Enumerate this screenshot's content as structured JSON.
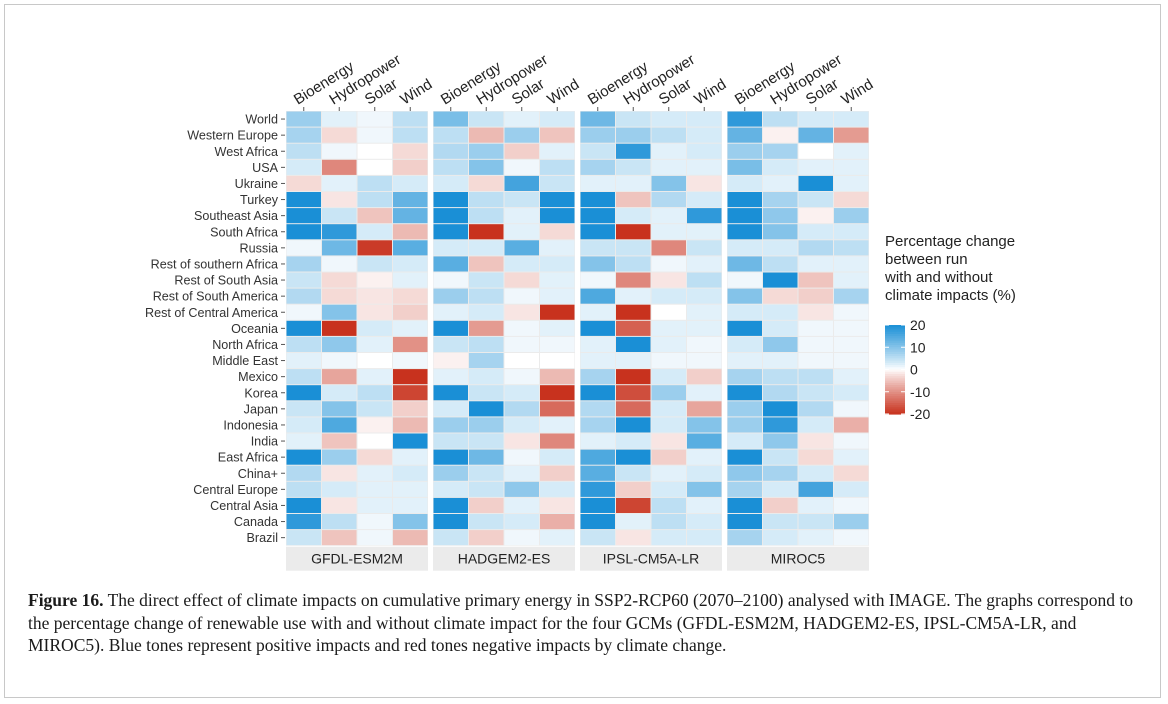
{
  "chart_data": {
    "type": "heatmap",
    "facets": [
      "GFDL-ESM2M",
      "HADGEM2-ES",
      "IPSL-CM5A-LR",
      "MIROC5"
    ],
    "columns": [
      "Bioenergy",
      "Hydropower",
      "Solar",
      "Wind"
    ],
    "rows": [
      "World",
      "Western Europe",
      "West Africa",
      "USA",
      "Ukraine",
      "Turkey",
      "Southeast Asia",
      "South Africa",
      "Russia",
      "Rest of southern Africa",
      "Rest of South Asia",
      "Rest of South America",
      "Rest of Central America",
      "Oceania",
      "North Africa",
      "Middle East",
      "Mexico",
      "Korea",
      "Japan",
      "Indonesia",
      "India",
      "East Africa",
      "China+",
      "Central Europe",
      "Central Asia",
      "Canada",
      "Brazil"
    ],
    "values": {
      "GFDL-ESM2M": [
        [
          8,
          2,
          1,
          5
        ],
        [
          7,
          -3,
          1,
          5
        ],
        [
          5,
          1,
          0,
          -3
        ],
        [
          3,
          -11,
          0,
          -4
        ],
        [
          -3,
          2,
          5,
          3
        ],
        [
          20,
          -2,
          5,
          13
        ],
        [
          20,
          4,
          -5,
          13
        ],
        [
          20,
          18,
          3,
          -6
        ],
        [
          1,
          12,
          -19,
          14
        ],
        [
          7,
          1,
          4,
          3
        ],
        [
          4,
          -3,
          -1,
          2
        ],
        [
          6,
          -3,
          -2,
          -3
        ],
        [
          1,
          10,
          -2,
          -4
        ],
        [
          20,
          -20,
          3,
          2
        ],
        [
          5,
          9,
          2,
          -10
        ],
        [
          2,
          1,
          0,
          1
        ],
        [
          5,
          -8,
          2,
          -21
        ],
        [
          20,
          3,
          5,
          -18
        ],
        [
          4,
          10,
          4,
          -4
        ],
        [
          3,
          15,
          -1,
          -6
        ],
        [
          2,
          -5,
          0,
          20
        ],
        [
          20,
          8,
          -3,
          2
        ],
        [
          6,
          -2,
          2,
          3
        ],
        [
          5,
          3,
          2,
          2
        ],
        [
          20,
          -2,
          2,
          2
        ],
        [
          18,
          5,
          1,
          10
        ],
        [
          4,
          -5,
          1,
          -6
        ]
      ],
      "HADGEM2-ES": [
        [
          11,
          4,
          2,
          3
        ],
        [
          5,
          -6,
          8,
          -5
        ],
        [
          6,
          8,
          -4,
          2
        ],
        [
          5,
          10,
          1,
          5
        ],
        [
          3,
          -3,
          16,
          4
        ],
        [
          20,
          5,
          4,
          20
        ],
        [
          20,
          5,
          2,
          20
        ],
        [
          20,
          -20,
          2,
          -3
        ],
        [
          3,
          3,
          14,
          2
        ],
        [
          14,
          -5,
          3,
          3
        ],
        [
          1,
          4,
          -3,
          2
        ],
        [
          8,
          5,
          1,
          2
        ],
        [
          2,
          3,
          -2,
          -20
        ],
        [
          20,
          -9,
          1,
          2
        ],
        [
          4,
          5,
          1,
          1
        ],
        [
          -1,
          7,
          0,
          0
        ],
        [
          2,
          3,
          1,
          -6
        ],
        [
          20,
          4,
          3,
          -20
        ],
        [
          3,
          20,
          6,
          -14
        ],
        [
          8,
          8,
          3,
          2
        ],
        [
          4,
          4,
          -2,
          -11
        ],
        [
          20,
          12,
          1,
          3
        ],
        [
          8,
          4,
          2,
          -4
        ],
        [
          3,
          4,
          9,
          3
        ],
        [
          20,
          -4,
          2,
          -2
        ],
        [
          20,
          4,
          3,
          -7
        ],
        [
          4,
          -4,
          1,
          2
        ]
      ],
      "IPSL-CM5A-LR": [
        [
          12,
          4,
          3,
          3
        ],
        [
          8,
          8,
          5,
          3
        ],
        [
          4,
          18,
          2,
          3
        ],
        [
          7,
          4,
          2,
          2
        ],
        [
          2,
          2,
          10,
          -2
        ],
        [
          20,
          -5,
          6,
          3
        ],
        [
          20,
          3,
          2,
          18
        ],
        [
          20,
          -20,
          2,
          2
        ],
        [
          4,
          4,
          -11,
          4
        ],
        [
          10,
          5,
          1,
          2
        ],
        [
          1,
          -11,
          -2,
          5
        ],
        [
          15,
          2,
          3,
          3
        ],
        [
          2,
          -20,
          0,
          2
        ],
        [
          20,
          -15,
          2,
          2
        ],
        [
          2,
          20,
          2,
          1
        ],
        [
          2,
          2,
          1,
          1
        ],
        [
          7,
          -20,
          3,
          -4
        ],
        [
          20,
          -17,
          8,
          2
        ],
        [
          6,
          -14,
          3,
          -8
        ],
        [
          7,
          20,
          3,
          10
        ],
        [
          2,
          3,
          -2,
          14
        ],
        [
          15,
          20,
          -4,
          2
        ],
        [
          14,
          4,
          2,
          3
        ],
        [
          18,
          -4,
          3,
          10
        ],
        [
          20,
          -18,
          5,
          2
        ],
        [
          20,
          2,
          5,
          3
        ],
        [
          4,
          -2,
          3,
          3
        ]
      ],
      "MIROC5": [
        [
          18,
          5,
          3,
          3
        ],
        [
          13,
          -1,
          13,
          -9
        ],
        [
          8,
          7,
          0,
          2
        ],
        [
          11,
          3,
          2,
          2
        ],
        [
          3,
          2,
          20,
          2
        ],
        [
          20,
          7,
          4,
          -3
        ],
        [
          20,
          9,
          -1,
          8
        ],
        [
          20,
          10,
          3,
          3
        ],
        [
          3,
          3,
          6,
          5
        ],
        [
          12,
          5,
          2,
          2
        ],
        [
          1,
          20,
          -5,
          2
        ],
        [
          10,
          -3,
          -4,
          7
        ],
        [
          3,
          3,
          -2,
          1
        ],
        [
          20,
          3,
          1,
          1
        ],
        [
          3,
          9,
          1,
          1
        ],
        [
          2,
          2,
          1,
          1
        ],
        [
          7,
          5,
          5,
          2
        ],
        [
          20,
          6,
          4,
          3
        ],
        [
          8,
          20,
          6,
          1
        ],
        [
          8,
          18,
          3,
          -7
        ],
        [
          3,
          9,
          -2,
          1
        ],
        [
          20,
          4,
          -3,
          2
        ],
        [
          9,
          7,
          3,
          -3
        ],
        [
          7,
          3,
          16,
          3
        ],
        [
          20,
          -4,
          2,
          1
        ],
        [
          20,
          4,
          4,
          8
        ],
        [
          7,
          3,
          2,
          1
        ]
      ]
    },
    "legend": {
      "title_lines": [
        "Percentage change",
        "between run",
        "with and without",
        "climate impacts (%)"
      ],
      "min": -20,
      "max": 20,
      "ticks": [
        20,
        10,
        0,
        -10,
        -20
      ],
      "tick_labels": [
        "20",
        "10",
        "0",
        "-10",
        "-20"
      ]
    },
    "colors": {
      "positive": "#1a8fd6",
      "neutral": "#ffffff",
      "negative": "#c8321e",
      "panel_bg": "#ebebeb"
    }
  },
  "caption": {
    "label": "Figure 16.",
    "text": " The direct effect of climate impacts on cumulative primary energy in SSP2-RCP60 (2070–2100) analysed with IMAGE. The graphs correspond to the percentage change of renewable use with and without climate impact for the four GCMs (GFDL-ESM2M, HADGEM2-ES, IPSL-CM5A-LR, and MIROC5). Blue tones represent positive impacts and red tones negative impacts by climate change."
  }
}
